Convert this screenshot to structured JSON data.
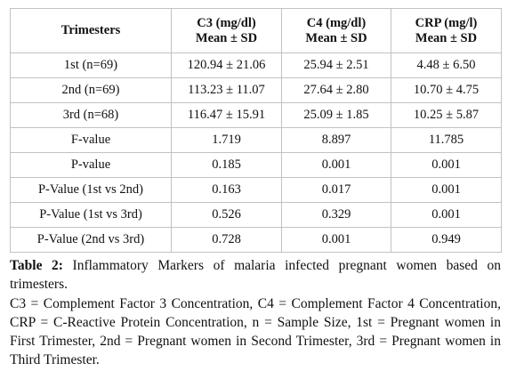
{
  "table": {
    "headers": [
      {
        "line1": "Trimesters",
        "line2": ""
      },
      {
        "line1": "C3 (mg/dl)",
        "line2": "Mean ± SD"
      },
      {
        "line1": "C4 (mg/dl)",
        "line2": "Mean ± SD"
      },
      {
        "line1": "CRP (mg/l)",
        "line2": "Mean ± SD"
      }
    ],
    "rows": [
      [
        "1st (n=69)",
        "120.94 ± 21.06",
        "25.94 ± 2.51",
        "4.48 ± 6.50"
      ],
      [
        "2nd (n=69)",
        "113.23 ± 11.07",
        "27.64 ± 2.80",
        "10.70 ± 4.75"
      ],
      [
        "3rd (n=68)",
        "116.47 ± 15.91",
        "25.09 ± 1.85",
        "10.25 ± 5.87"
      ],
      [
        "F-value",
        "1.719",
        "8.897",
        "11.785"
      ],
      [
        "P-value",
        "0.185",
        "0.001",
        "0.001"
      ],
      [
        "P-Value (1st vs 2nd)",
        "0.163",
        "0.017",
        "0.001"
      ],
      [
        "P-Value (1st vs 3rd)",
        "0.526",
        "0.329",
        "0.001"
      ],
      [
        "P-Value (2nd vs 3rd)",
        "0.728",
        "0.001",
        "0.949"
      ]
    ]
  },
  "caption": {
    "label": "Table 2:",
    "text": " Inflammatory Markers of malaria infected pregnant women based on trimesters."
  },
  "notes": "C3 = Complement Factor 3 Concentration, C4 = Complement Factor 4 Concentration, CRP = C-Reactive Protein Concentration, n = Sample Size, 1st = Pregnant women in First Trimester, 2nd = Pregnant women in Second Trimester, 3rd = Pregnant women in Third Trimester."
}
